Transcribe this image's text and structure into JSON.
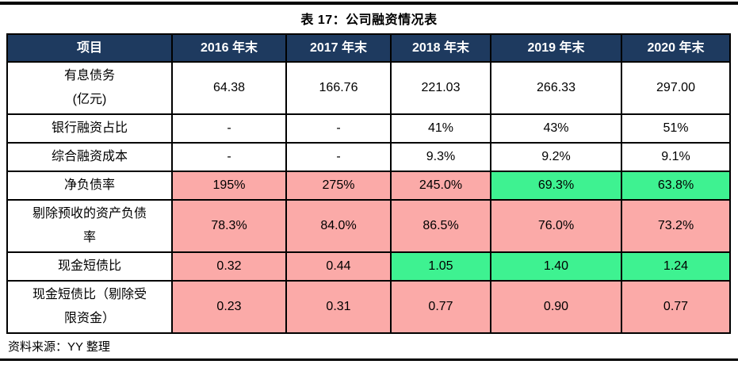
{
  "title": "表 17：公司融资情况表",
  "source_note": "资料来源：YY 整理",
  "colors": {
    "header_bg": "#1e3a5f",
    "highlight_red": "#fbaaa8",
    "highlight_green": "#3ef291",
    "rule_color": "#000000"
  },
  "chart_data": {
    "type": "table",
    "title": "表 17：公司融资情况表",
    "columns": [
      "项目",
      "2016 年末",
      "2017 年末",
      "2018 年末",
      "2019 年末",
      "2020 年末"
    ],
    "rows": [
      {
        "label": "有息债务\n(亿元)",
        "values": [
          "64.38",
          "166.76",
          "221.03",
          "266.33",
          "297.00"
        ],
        "highlights": [
          "none",
          "none",
          "none",
          "none",
          "none"
        ]
      },
      {
        "label": "银行融资占比",
        "values": [
          "-",
          "-",
          "41%",
          "43%",
          "51%"
        ],
        "highlights": [
          "none",
          "none",
          "none",
          "none",
          "none"
        ]
      },
      {
        "label": "综合融资成本",
        "values": [
          "-",
          "-",
          "9.3%",
          "9.2%",
          "9.1%"
        ],
        "highlights": [
          "none",
          "none",
          "none",
          "none",
          "none"
        ]
      },
      {
        "label": "净负债率",
        "values": [
          "195%",
          "275%",
          "245.0%",
          "69.3%",
          "63.8%"
        ],
        "highlights": [
          "red",
          "red",
          "red",
          "green",
          "green"
        ]
      },
      {
        "label": "剔除预收的资产负债\n率",
        "values": [
          "78.3%",
          "84.0%",
          "86.5%",
          "76.0%",
          "73.2%"
        ],
        "highlights": [
          "red",
          "red",
          "red",
          "red",
          "red"
        ]
      },
      {
        "label": "现金短债比",
        "values": [
          "0.32",
          "0.44",
          "1.05",
          "1.40",
          "1.24"
        ],
        "highlights": [
          "red",
          "red",
          "green",
          "green",
          "green"
        ]
      },
      {
        "label": "现金短债比（剔除受\n限资金）",
        "values": [
          "0.23",
          "0.31",
          "0.77",
          "0.90",
          "0.77"
        ],
        "highlights": [
          "red",
          "red",
          "red",
          "red",
          "red"
        ]
      }
    ]
  }
}
